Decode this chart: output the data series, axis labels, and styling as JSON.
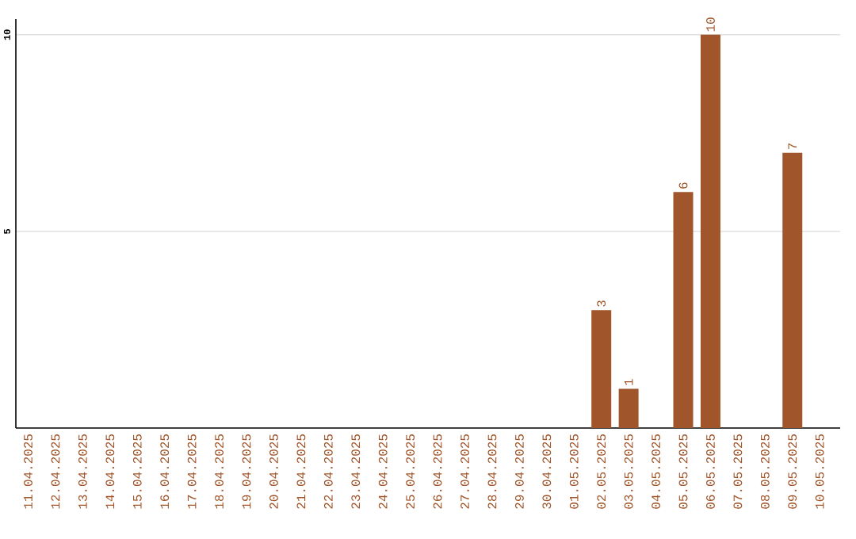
{
  "chart_data": {
    "type": "bar",
    "categories": [
      "11.04.2025",
      "12.04.2025",
      "13.04.2025",
      "14.04.2025",
      "15.04.2025",
      "16.04.2025",
      "17.04.2025",
      "18.04.2025",
      "19.04.2025",
      "20.04.2025",
      "21.04.2025",
      "22.04.2025",
      "23.04.2025",
      "24.04.2025",
      "25.04.2025",
      "26.04.2025",
      "27.04.2025",
      "28.04.2025",
      "29.04.2025",
      "30.04.2025",
      "01.05.2025",
      "02.05.2025",
      "03.05.2025",
      "04.05.2025",
      "05.05.2025",
      "06.05.2025",
      "07.05.2025",
      "08.05.2025",
      "09.05.2025",
      "10.05.2025"
    ],
    "values": [
      0,
      0,
      0,
      0,
      0,
      0,
      0,
      0,
      0,
      0,
      0,
      0,
      0,
      0,
      0,
      0,
      0,
      0,
      0,
      0,
      0,
      3,
      1,
      0,
      6,
      10,
      0,
      0,
      7,
      0
    ],
    "value_labels": [
      null,
      null,
      null,
      null,
      null,
      null,
      null,
      null,
      null,
      null,
      null,
      null,
      null,
      null,
      null,
      null,
      null,
      null,
      null,
      null,
      null,
      "3",
      "1",
      null,
      "6",
      "10",
      null,
      null,
      "7",
      null
    ],
    "color": "#a0562a",
    "ylim": [
      0,
      10.4
    ],
    "yticks": [
      5,
      10
    ],
    "grid": "y"
  }
}
